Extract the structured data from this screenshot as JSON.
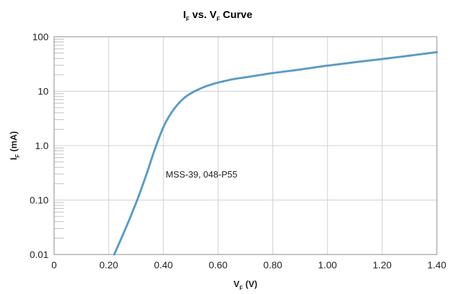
{
  "chart_data": {
    "type": "line",
    "title": {
      "main": "I",
      "main_sub": "F",
      "mid": " vs. V",
      "mid_sub": "F",
      "end": " Curve"
    },
    "xlabel": {
      "main": "V",
      "sub": "F",
      "unit": " (V)"
    },
    "ylabel": {
      "main": "I",
      "sub": "F",
      "unit": " (mA)"
    },
    "x_scale": "linear",
    "y_scale": "log",
    "xlim": [
      0,
      1.4
    ],
    "ylim": [
      0.01,
      100
    ],
    "x_ticks": [
      0,
      0.2,
      0.4,
      0.6,
      0.8,
      1.0,
      1.2,
      1.4
    ],
    "x_tick_labels": [
      "0",
      "0.20",
      "0.40",
      "0.60",
      "0.80",
      "1.00",
      "1.20",
      "1.40"
    ],
    "y_ticks": [
      0.01,
      0.1,
      1,
      10,
      100
    ],
    "y_tick_labels": [
      "0.01",
      "0.10",
      "1.0",
      "10",
      "100"
    ],
    "grid": true,
    "annotation": "MSS-39, 048-P55",
    "series": [
      {
        "color": "#5b9bc4",
        "x": [
          0.22,
          0.25,
          0.28,
          0.31,
          0.34,
          0.37,
          0.4,
          0.42,
          0.44,
          0.46,
          0.48,
          0.5,
          0.52,
          0.55,
          0.58,
          0.62,
          0.66,
          0.7,
          0.8,
          0.9,
          1.0,
          1.1,
          1.2,
          1.3,
          1.4
        ],
        "y": [
          0.01,
          0.022,
          0.05,
          0.12,
          0.32,
          0.9,
          2.2,
          3.4,
          4.8,
          6.3,
          7.8,
          9.1,
          10.3,
          12.0,
          13.5,
          15.2,
          16.8,
          18.0,
          21.5,
          25.0,
          29.5,
          34.0,
          39.0,
          45.0,
          52.0
        ]
      }
    ]
  }
}
